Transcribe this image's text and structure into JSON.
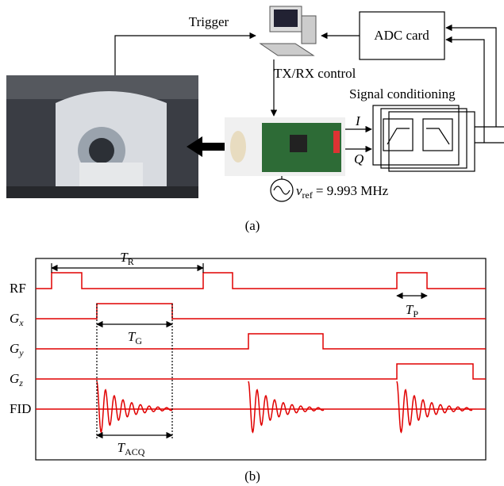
{
  "panel_a": {
    "trigger": "Trigger",
    "adc_card": "ADC card",
    "txrx_control": "TX/RX control",
    "signal_conditioning": "Signal conditioning",
    "i": "I",
    "q": "Q",
    "vref": {
      "symbol": "ν",
      "sub": "ref",
      "rest": "= 9.993 MHz"
    },
    "caption": "(a)"
  },
  "panel_b": {
    "rows": [
      {
        "main": "RF",
        "sub": ""
      },
      {
        "main": "G",
        "sub": "x"
      },
      {
        "main": "G",
        "sub": "y"
      },
      {
        "main": "G",
        "sub": "z"
      },
      {
        "main": "FID",
        "sub": ""
      }
    ],
    "tr": {
      "main": "T",
      "sub": "R"
    },
    "tg": {
      "main": "T",
      "sub": "G"
    },
    "tp": {
      "main": "T",
      "sub": "P"
    },
    "tacq": {
      "main": "T",
      "sub": "ACQ"
    },
    "caption": "(b)"
  }
}
